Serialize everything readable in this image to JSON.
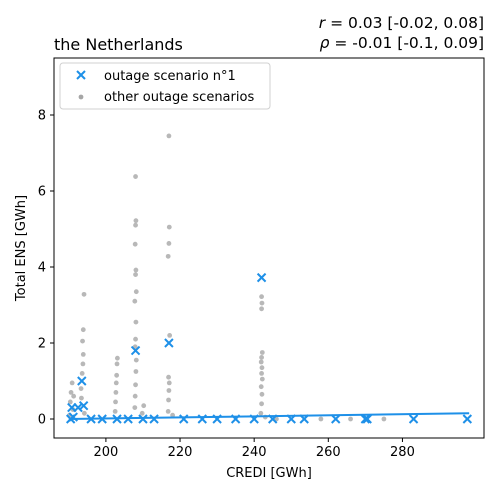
{
  "chart_data": {
    "type": "scatter",
    "title": "the Netherlands",
    "stats": {
      "r_label": "r",
      "r_text": " = 0.03 [-0.02, 0.08]",
      "rho_label": "ρ",
      "rho_text": " = -0.01 [-0.1, 0.09]"
    },
    "xlabel": "CREDI [GWh]",
    "ylabel": "Total ENS [GWh]",
    "xlim": [
      186,
      302
    ],
    "ylim": [
      -0.5,
      9.5
    ],
    "xticks": [
      200,
      220,
      240,
      260,
      280
    ],
    "xtick_labels": [
      "200",
      "220",
      "240",
      "260",
      "280"
    ],
    "yticks": [
      0,
      2,
      4,
      6,
      8
    ],
    "ytick_labels": [
      "0",
      "2",
      "4",
      "6",
      "8"
    ],
    "legend": {
      "placement": "top-left",
      "entries": [
        "outage scenario n°1",
        "other outage scenarios"
      ]
    },
    "colors": {
      "highlight": "#1e90e8",
      "other": "#a6a6a6",
      "axes": "#000000"
    },
    "series": [
      {
        "name": "outage scenario n°1",
        "marker": "x",
        "points": [
          [
            190.5,
            0.0
          ],
          [
            190.8,
            0.3
          ],
          [
            191.2,
            0.05
          ],
          [
            192.5,
            0.3
          ],
          [
            193.5,
            1.0
          ],
          [
            194.0,
            0.35
          ],
          [
            196.0,
            0.0
          ],
          [
            199.0,
            0.0
          ],
          [
            203.0,
            0.0
          ],
          [
            206.0,
            0.0
          ],
          [
            208.0,
            1.8
          ],
          [
            210.0,
            0.0
          ],
          [
            213.0,
            0.0
          ],
          [
            217.0,
            2.0
          ],
          [
            221.0,
            0.0
          ],
          [
            226.0,
            0.0
          ],
          [
            230.0,
            0.0
          ],
          [
            235.0,
            0.0
          ],
          [
            240.0,
            0.0
          ],
          [
            242.0,
            3.72
          ],
          [
            245.0,
            0.0
          ],
          [
            250.0,
            0.0
          ],
          [
            253.5,
            0.0
          ],
          [
            262.0,
            0.0
          ],
          [
            270.0,
            0.0
          ],
          [
            270.5,
            0.0
          ],
          [
            283.0,
            0.0
          ],
          [
            297.5,
            0.0
          ]
        ]
      },
      {
        "name": "other outage scenarios",
        "marker": "dot",
        "points": [
          [
            190.2,
            0.1
          ],
          [
            190.4,
            0.45
          ],
          [
            190.6,
            0.7
          ],
          [
            190.9,
            0.95
          ],
          [
            191.1,
            0.25
          ],
          [
            191.3,
            0.6
          ],
          [
            193.3,
            0.8
          ],
          [
            193.6,
            1.2
          ],
          [
            193.8,
            1.45
          ],
          [
            193.9,
            1.7
          ],
          [
            193.7,
            2.05
          ],
          [
            193.9,
            2.35
          ],
          [
            194.1,
            3.28
          ],
          [
            193.4,
            0.55
          ],
          [
            194.2,
            0.15
          ],
          [
            202.5,
            0.2
          ],
          [
            202.6,
            0.45
          ],
          [
            202.7,
            0.7
          ],
          [
            202.8,
            0.95
          ],
          [
            202.9,
            1.15
          ],
          [
            203.0,
            1.45
          ],
          [
            203.1,
            1.6
          ],
          [
            207.8,
            0.3
          ],
          [
            207.9,
            0.6
          ],
          [
            208.0,
            0.9
          ],
          [
            208.1,
            1.25
          ],
          [
            208.2,
            1.55
          ],
          [
            207.9,
            1.9
          ],
          [
            208.0,
            2.1
          ],
          [
            208.1,
            2.55
          ],
          [
            207.8,
            3.1
          ],
          [
            208.2,
            3.35
          ],
          [
            208.0,
            3.8
          ],
          [
            208.1,
            3.92
          ],
          [
            207.9,
            4.6
          ],
          [
            208.0,
            5.1
          ],
          [
            208.1,
            5.22
          ],
          [
            208.0,
            6.38
          ],
          [
            209.8,
            0.15
          ],
          [
            210.2,
            0.35
          ],
          [
            216.8,
            0.2
          ],
          [
            216.9,
            0.5
          ],
          [
            217.0,
            0.75
          ],
          [
            217.1,
            0.95
          ],
          [
            216.9,
            1.1
          ],
          [
            217.2,
            2.2
          ],
          [
            216.8,
            4.28
          ],
          [
            217.0,
            4.62
          ],
          [
            217.1,
            5.05
          ],
          [
            217.0,
            7.45
          ],
          [
            218.0,
            0.1
          ],
          [
            241.8,
            0.15
          ],
          [
            242.0,
            0.4
          ],
          [
            242.1,
            0.65
          ],
          [
            241.9,
            0.85
          ],
          [
            242.2,
            1.05
          ],
          [
            242.0,
            1.2
          ],
          [
            242.1,
            1.35
          ],
          [
            241.9,
            1.5
          ],
          [
            242.0,
            1.62
          ],
          [
            242.2,
            1.75
          ],
          [
            242.0,
            2.9
          ],
          [
            242.1,
            3.05
          ],
          [
            242.0,
            3.22
          ],
          [
            243.0,
            0.05
          ],
          [
            246.0,
            0.0
          ],
          [
            258.0,
            0.0
          ],
          [
            266.0,
            0.0
          ],
          [
            275.0,
            0.0
          ]
        ]
      }
    ],
    "trend_line": {
      "from": [
        190,
        0.0
      ],
      "to": [
        298,
        0.15
      ]
    }
  }
}
